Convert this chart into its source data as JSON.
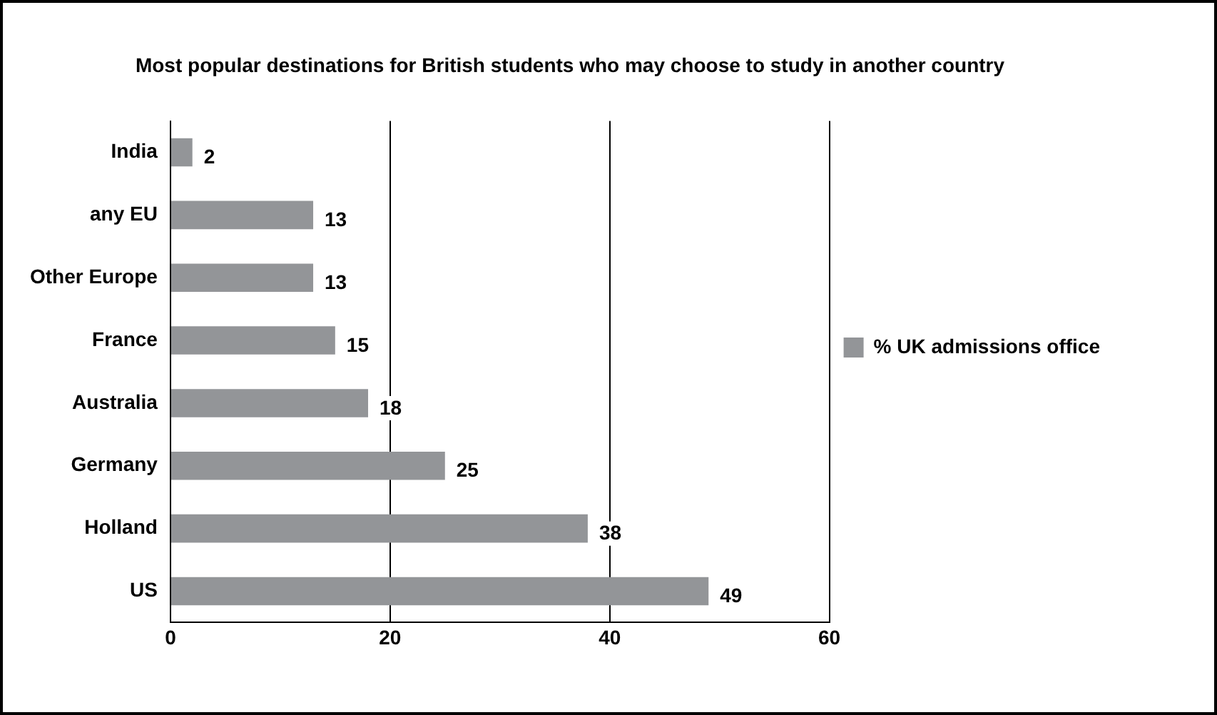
{
  "chart_data": {
    "type": "bar",
    "orientation": "horizontal",
    "title": "Most popular destinations for British students who may choose to study in another country",
    "categories": [
      "India",
      "any EU",
      "Other Europe",
      "France",
      "Australia",
      "Germany",
      "Holland",
      "US"
    ],
    "series": [
      {
        "name": "% UK admissions office",
        "color": "#939598",
        "values": [
          2,
          13,
          13,
          15,
          18,
          25,
          38,
          49
        ]
      }
    ],
    "xlim": [
      0,
      60
    ],
    "xticks": [
      0,
      20,
      40,
      60
    ],
    "grid": "x",
    "legend": "right",
    "data_labels": true
  }
}
